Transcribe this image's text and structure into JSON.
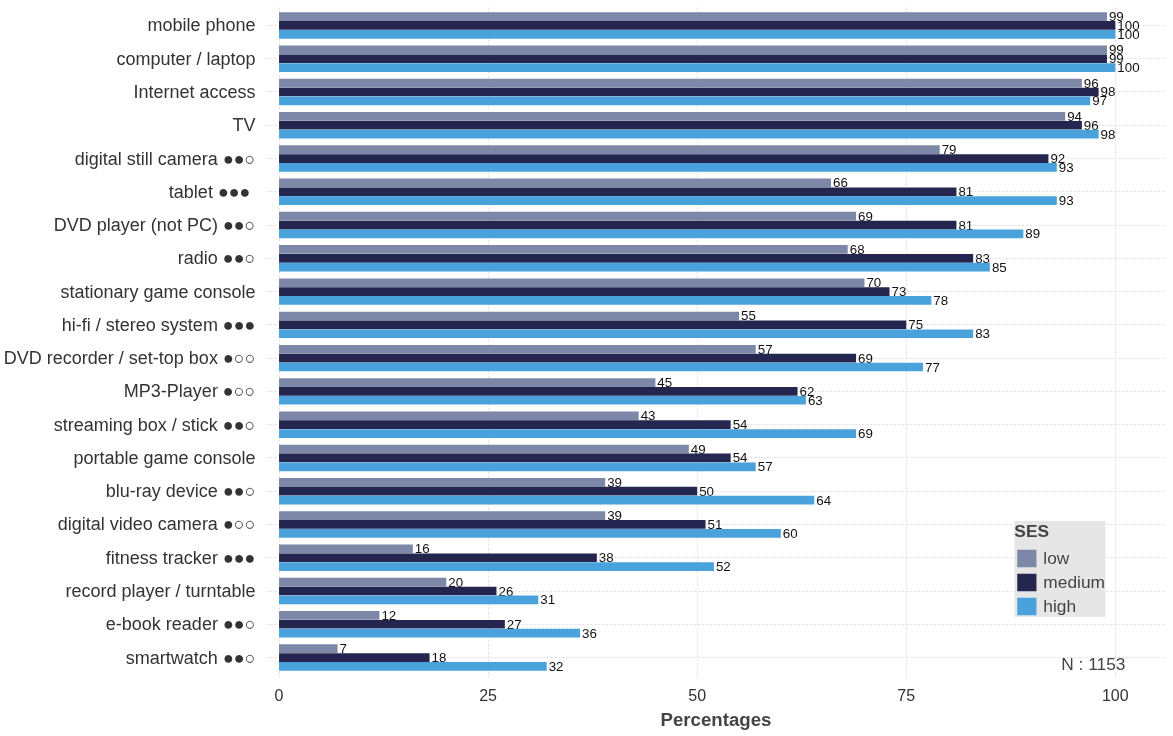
{
  "chart_data": {
    "type": "bar",
    "orientation": "horizontal",
    "xlabel": "Percentages",
    "legend_title": "SES",
    "categories": [
      "mobile phone",
      "computer / laptop",
      "Internet access",
      "TV",
      "digital still camera ●●○",
      "tablet  ●●●",
      "DVD player (not PC) ●●○",
      "radio ●●○",
      "stationary game console",
      "hi-fi / stereo system ●●●",
      "DVD recorder / set-top box ●○○",
      "MP3-Player ●○○",
      "streaming box / stick ●●○",
      "portable game console",
      "blu-ray device ●●○",
      "digital video camera ●○○",
      "fitness tracker ●●●",
      "record player / turntable",
      "e-book reader ●●○",
      "smartwatch ●●○"
    ],
    "series": [
      {
        "name": "low",
        "color": "#7d87a8",
        "values": [
          99,
          99,
          96,
          94,
          79,
          66,
          69,
          68,
          70,
          55,
          57,
          45,
          43,
          49,
          39,
          39,
          16,
          20,
          12,
          7
        ]
      },
      {
        "name": "medium",
        "color": "#24264f",
        "values": [
          100,
          99,
          98,
          96,
          92,
          81,
          81,
          83,
          73,
          75,
          69,
          62,
          54,
          54,
          50,
          51,
          38,
          26,
          27,
          18
        ]
      },
      {
        "name": "high",
        "color": "#4aa2dc",
        "values": [
          100,
          100,
          97,
          98,
          93,
          93,
          89,
          85,
          78,
          83,
          77,
          63,
          69,
          57,
          64,
          60,
          52,
          31,
          36,
          32
        ]
      }
    ],
    "xlim": [
      -1.5,
      106
    ],
    "xticks": [
      0,
      25,
      50,
      75,
      100
    ],
    "grid": true,
    "legend": "bottom right",
    "data_labels": true,
    "annotations": [
      "N : 1153"
    ]
  }
}
